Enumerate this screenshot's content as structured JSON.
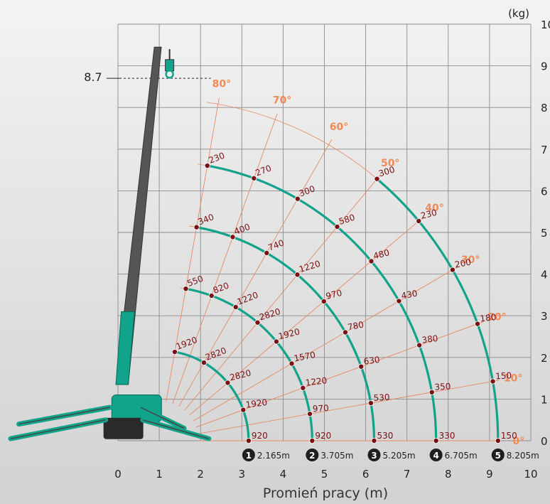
{
  "chart_data": {
    "type": "line",
    "title": "",
    "xlabel": "Promień pracy (m)",
    "ylabel": "",
    "unit_label": "(kg)",
    "marker_label": "8.7",
    "marker_height": 8.7,
    "xlim": [
      0,
      10
    ],
    "ylim": [
      0,
      10
    ],
    "x_ticks": [
      "0",
      "1",
      "2",
      "3",
      "4",
      "5",
      "6",
      "7",
      "8",
      "9",
      "10"
    ],
    "y_ticks": [
      "0",
      "1",
      "2",
      "3",
      "4",
      "5",
      "6",
      "7",
      "8",
      "9",
      "10"
    ],
    "grid": true,
    "pivot": [
      1.0,
      0.0
    ],
    "angles": [
      {
        "label": "0°",
        "deg": 0
      },
      {
        "label": "10°",
        "deg": 10
      },
      {
        "label": "20°",
        "deg": 20
      },
      {
        "label": "30°",
        "deg": 30
      },
      {
        "label": "40°",
        "deg": 40
      },
      {
        "label": "50°",
        "deg": 50
      },
      {
        "label": "60°",
        "deg": 60
      },
      {
        "label": "70°",
        "deg": 70
      },
      {
        "label": "80°",
        "deg": 80
      }
    ],
    "series": [
      {
        "name": "1",
        "radius_label": "2.165m",
        "radius": 2.165,
        "angles": [
          0,
          20,
          40,
          60,
          80
        ],
        "values": [
          "920",
          "1920",
          "2820",
          "2820",
          "1920"
        ]
      },
      {
        "name": "2",
        "radius_label": "3.705m",
        "radius": 3.705,
        "angles": [
          0,
          10,
          20,
          30,
          40,
          50,
          60,
          70,
          80
        ],
        "values": [
          "920",
          "970",
          "1220",
          "1570",
          "1920",
          "2820",
          "1220",
          "820",
          "550"
        ]
      },
      {
        "name": "3",
        "radius_label": "5.205m",
        "radius": 5.205,
        "angles": [
          0,
          10,
          20,
          30,
          40,
          50,
          60,
          70,
          80
        ],
        "values": [
          "530",
          "530",
          "630",
          "780",
          "970",
          "1220",
          "740",
          "400",
          "340"
        ]
      },
      {
        "name": "4",
        "radius_label": "6.705m",
        "radius": 6.705,
        "angles": [
          0,
          10,
          20,
          30,
          40,
          50,
          60,
          70,
          80
        ],
        "values": [
          "330",
          "350",
          "380",
          "430",
          "480",
          "580",
          "300",
          "270",
          "230"
        ]
      },
      {
        "name": "5",
        "radius_label": "8.205m",
        "radius": 8.205,
        "angles": [
          0,
          10,
          20,
          30,
          40,
          50
        ],
        "values": [
          "150",
          "150",
          "180",
          "200",
          "230",
          "300"
        ]
      }
    ]
  },
  "colors": {
    "arc": "#12a38b",
    "grid": "#8c8c8c",
    "angle": "#e58a63",
    "angle_label": "#f08a55",
    "point": "#7a0f14",
    "value": "#7a0f14",
    "badge": "#1e1e1e",
    "text": "#222222",
    "boom": "#555555"
  }
}
